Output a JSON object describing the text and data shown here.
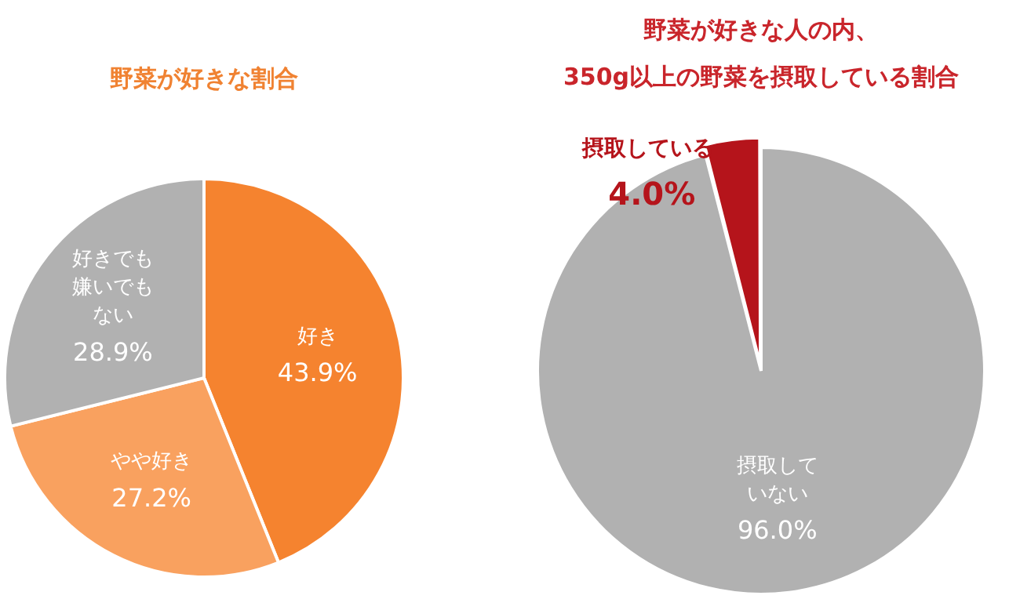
{
  "chart_data": [
    {
      "type": "pie",
      "title": "野菜が好きな割合",
      "categories": [
        "好き",
        "やや好き",
        "好きでも嫌いでもない"
      ],
      "values": [
        43.9,
        27.2,
        28.9
      ],
      "colors": [
        "#f5832f",
        "#f9a15f",
        "#b1b1b1"
      ],
      "value_labels": [
        "43.9%",
        "27.2%",
        "28.9%"
      ],
      "legend": false
    },
    {
      "type": "pie",
      "title": "野菜が好きな人の内、\n350g以上の野菜を摂取している割合",
      "categories": [
        "摂取していない",
        "摂取している"
      ],
      "values": [
        96.0,
        4.0
      ],
      "colors": [
        "#b1b1b1",
        "#b5141b"
      ],
      "value_labels": [
        "96.0%",
        "4.0%"
      ],
      "legend": false
    }
  ]
}
